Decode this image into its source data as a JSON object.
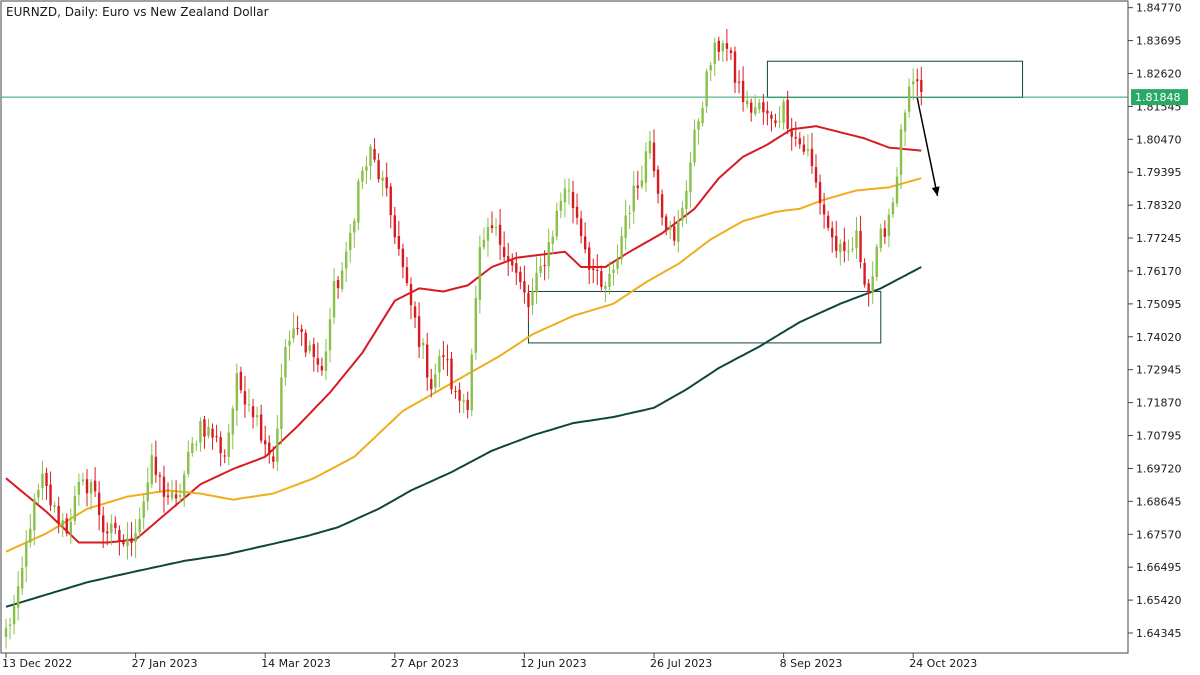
{
  "chart_data": {
    "type": "candlestick",
    "title": "EURNZD, Daily:  Euro vs New Zealand Dollar",
    "current_price": {
      "value": 1.81848,
      "label": "1.81848"
    },
    "ylim": [
      1.6379,
      1.8502
    ],
    "y_ticks": [
      {
        "value": 1.8477,
        "label": "1.84770"
      },
      {
        "value": 1.83695,
        "label": "1.83695"
      },
      {
        "value": 1.8262,
        "label": "1.82620"
      },
      {
        "value": 1.81545,
        "label": "1.81545"
      },
      {
        "value": 1.8047,
        "label": "1.80470"
      },
      {
        "value": 1.79395,
        "label": "1.79395"
      },
      {
        "value": 1.7832,
        "label": "1.78320"
      },
      {
        "value": 1.77245,
        "label": "1.77245"
      },
      {
        "value": 1.7617,
        "label": "1.76170"
      },
      {
        "value": 1.75095,
        "label": "1.75095"
      },
      {
        "value": 1.7402,
        "label": "1.74020"
      },
      {
        "value": 1.72945,
        "label": "1.72945"
      },
      {
        "value": 1.7187,
        "label": "1.71870"
      },
      {
        "value": 1.70795,
        "label": "1.70795"
      },
      {
        "value": 1.6972,
        "label": "1.69720"
      },
      {
        "value": 1.68645,
        "label": "1.68645"
      },
      {
        "value": 1.6757,
        "label": "1.67570"
      },
      {
        "value": 1.66495,
        "label": "1.66495"
      },
      {
        "value": 1.6542,
        "label": "1.65420"
      },
      {
        "value": 1.64345,
        "label": "1.64345"
      }
    ],
    "x_ticks": [
      {
        "index": 0,
        "label": "13 Dec 2022"
      },
      {
        "index": 32,
        "label": "27 Jan 2023"
      },
      {
        "index": 64,
        "label": "14 Mar 2023"
      },
      {
        "index": 96,
        "label": "27 Apr 2023"
      },
      {
        "index": 128,
        "label": "12 Jun 2023"
      },
      {
        "index": 160,
        "label": "26 Jul 2023"
      },
      {
        "index": 192,
        "label": "8 Sep 2023"
      },
      {
        "index": 224,
        "label": "24 Oct 2023"
      }
    ],
    "close_anchors": [
      [
        0,
        1.644
      ],
      [
        3,
        1.655
      ],
      [
        6,
        1.68
      ],
      [
        9,
        1.693
      ],
      [
        12,
        1.683
      ],
      [
        15,
        1.678
      ],
      [
        18,
        1.69
      ],
      [
        21,
        1.693
      ],
      [
        24,
        1.678
      ],
      [
        27,
        1.675
      ],
      [
        30,
        1.672
      ],
      [
        33,
        1.682
      ],
      [
        36,
        1.698
      ],
      [
        39,
        1.69
      ],
      [
        42,
        1.685
      ],
      [
        45,
        1.7
      ],
      [
        48,
        1.712
      ],
      [
        51,
        1.708
      ],
      [
        54,
        1.702
      ],
      [
        57,
        1.725
      ],
      [
        60,
        1.72
      ],
      [
        63,
        1.71
      ],
      [
        66,
        1.7
      ],
      [
        69,
        1.737
      ],
      [
        72,
        1.742
      ],
      [
        75,
        1.737
      ],
      [
        78,
        1.728
      ],
      [
        81,
        1.755
      ],
      [
        84,
        1.765
      ],
      [
        87,
        1.79
      ],
      [
        90,
        1.8
      ],
      [
        93,
        1.79
      ],
      [
        96,
        1.775
      ],
      [
        99,
        1.755
      ],
      [
        102,
        1.74
      ],
      [
        105,
        1.725
      ],
      [
        108,
        1.735
      ],
      [
        111,
        1.72
      ],
      [
        114,
        1.72
      ],
      [
        117,
        1.767
      ],
      [
        120,
        1.775
      ],
      [
        123,
        1.77
      ],
      [
        126,
        1.76
      ],
      [
        129,
        1.75
      ],
      [
        132,
        1.762
      ],
      [
        135,
        1.775
      ],
      [
        138,
        1.79
      ],
      [
        141,
        1.78
      ],
      [
        144,
        1.765
      ],
      [
        147,
        1.755
      ],
      [
        150,
        1.76
      ],
      [
        153,
        1.78
      ],
      [
        156,
        1.79
      ],
      [
        159,
        1.805
      ],
      [
        162,
        1.782
      ],
      [
        165,
        1.77
      ],
      [
        168,
        1.79
      ],
      [
        171,
        1.812
      ],
      [
        174,
        1.83
      ],
      [
        177,
        1.838
      ],
      [
        180,
        1.825
      ],
      [
        183,
        1.815
      ],
      [
        186,
        1.815
      ],
      [
        189,
        1.81
      ],
      [
        192,
        1.815
      ],
      [
        195,
        1.805
      ],
      [
        198,
        1.8
      ],
      [
        201,
        1.785
      ],
      [
        204,
        1.772
      ],
      [
        207,
        1.765
      ],
      [
        210,
        1.772
      ],
      [
        213,
        1.755
      ],
      [
        216,
        1.772
      ],
      [
        219,
        1.785
      ],
      [
        222,
        1.815
      ],
      [
        224,
        1.822
      ],
      [
        226,
        1.818
      ]
    ],
    "series": [
      {
        "type": "ma",
        "color": "#d81b22",
        "anchors": [
          [
            0,
            1.694
          ],
          [
            10,
            1.683
          ],
          [
            18,
            1.673
          ],
          [
            25,
            1.673
          ],
          [
            32,
            1.674
          ],
          [
            40,
            1.683
          ],
          [
            48,
            1.692
          ],
          [
            56,
            1.697
          ],
          [
            64,
            1.701
          ],
          [
            72,
            1.711
          ],
          [
            80,
            1.722
          ],
          [
            88,
            1.735
          ],
          [
            96,
            1.752
          ],
          [
            102,
            1.756
          ],
          [
            108,
            1.755
          ],
          [
            114,
            1.757
          ],
          [
            120,
            1.763
          ],
          [
            126,
            1.766
          ],
          [
            132,
            1.767
          ],
          [
            138,
            1.768
          ],
          [
            142,
            1.763
          ],
          [
            148,
            1.763
          ],
          [
            154,
            1.768
          ],
          [
            162,
            1.774
          ],
          [
            170,
            1.782
          ],
          [
            176,
            1.792
          ],
          [
            182,
            1.799
          ],
          [
            188,
            1.803
          ],
          [
            194,
            1.808
          ],
          [
            200,
            1.809
          ],
          [
            206,
            1.807
          ],
          [
            212,
            1.805
          ],
          [
            218,
            1.802
          ],
          [
            226,
            1.801
          ]
        ]
      },
      {
        "type": "ma",
        "color": "#f0ad1c",
        "anchors": [
          [
            0,
            1.67
          ],
          [
            10,
            1.676
          ],
          [
            20,
            1.684
          ],
          [
            30,
            1.688
          ],
          [
            40,
            1.69
          ],
          [
            48,
            1.689
          ],
          [
            56,
            1.687
          ],
          [
            66,
            1.689
          ],
          [
            76,
            1.694
          ],
          [
            86,
            1.701
          ],
          [
            94,
            1.711
          ],
          [
            98,
            1.716
          ],
          [
            106,
            1.722
          ],
          [
            114,
            1.728
          ],
          [
            122,
            1.734
          ],
          [
            130,
            1.741
          ],
          [
            140,
            1.747
          ],
          [
            150,
            1.751
          ],
          [
            158,
            1.758
          ],
          [
            166,
            1.764
          ],
          [
            174,
            1.772
          ],
          [
            182,
            1.778
          ],
          [
            190,
            1.781
          ],
          [
            196,
            1.782
          ],
          [
            202,
            1.785
          ],
          [
            210,
            1.788
          ],
          [
            218,
            1.789
          ],
          [
            226,
            1.792
          ]
        ]
      },
      {
        "type": "ma",
        "color": "#10453f",
        "anchors": [
          [
            0,
            1.652
          ],
          [
            10,
            1.656
          ],
          [
            20,
            1.66
          ],
          [
            30,
            1.663
          ],
          [
            44,
            1.667
          ],
          [
            54,
            1.669
          ],
          [
            64,
            1.672
          ],
          [
            74,
            1.675
          ],
          [
            82,
            1.678
          ],
          [
            92,
            1.684
          ],
          [
            100,
            1.69
          ],
          [
            110,
            1.696
          ],
          [
            120,
            1.703
          ],
          [
            130,
            1.708
          ],
          [
            140,
            1.712
          ],
          [
            150,
            1.714
          ],
          [
            160,
            1.717
          ],
          [
            168,
            1.723
          ],
          [
            176,
            1.73
          ],
          [
            186,
            1.737
          ],
          [
            196,
            1.745
          ],
          [
            206,
            1.751
          ],
          [
            216,
            1.756
          ],
          [
            226,
            1.763
          ]
        ]
      }
    ],
    "annotations": [
      {
        "type": "rectangle",
        "from_index": 188,
        "to_index": 251,
        "y_top": 1.8302,
        "y_bottom": 1.8184
      },
      {
        "type": "rectangle",
        "from_index": 129,
        "to_index": 216,
        "y_top": 1.755,
        "y_bottom": 1.7382
      },
      {
        "type": "hline",
        "value": 1.81848,
        "color": "#2aa866"
      },
      {
        "type": "arrow",
        "from_index": 225,
        "from_value": 1.8182,
        "to_index": 230,
        "to_value": 1.7862,
        "color": "#000000"
      }
    ],
    "colors": {
      "bull": "#89c04a",
      "bear": "#d81b22",
      "current_price": "#2aa866",
      "annotation": "#10453f"
    },
    "grid": false
  }
}
